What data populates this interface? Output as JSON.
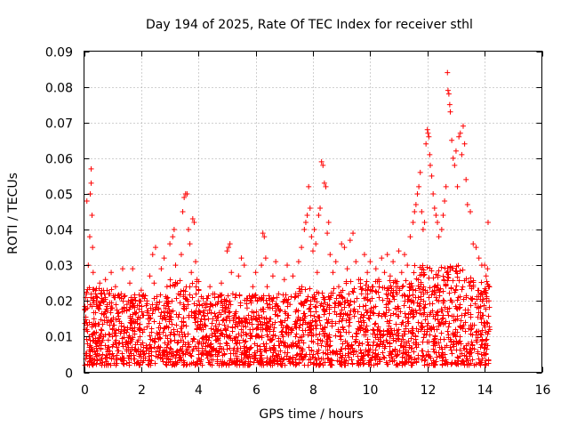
{
  "chart_data": {
    "type": "scatter",
    "title": "Day 194 of 2025, Rate Of TEC Index for receiver sthl",
    "xlabel": "GPS time / hours",
    "ylabel": "ROTI / TECUs",
    "xlim": [
      0,
      16
    ],
    "ylim": [
      0,
      0.09
    ],
    "x_ticks": [
      0,
      2,
      4,
      6,
      8,
      10,
      12,
      14,
      16
    ],
    "x_tick_labels": [
      "0",
      "2",
      "4",
      "6",
      "8",
      "10",
      "12",
      "14",
      "16"
    ],
    "y_ticks": [
      0,
      0.01,
      0.02,
      0.03,
      0.04,
      0.05,
      0.06,
      0.07,
      0.08,
      0.09
    ],
    "y_tick_labels": [
      "0",
      "0.01",
      "0.02",
      "0.03",
      "0.04",
      "0.05",
      "0.06",
      "0.07",
      "0.08",
      "0.09"
    ],
    "grid": true,
    "marker": "+",
    "color": "#ff0000",
    "series": [
      {
        "name": "ROTI",
        "points": [
          [
            0.05,
            0.012
          ],
          [
            0.08,
            0.022
          ],
          [
            0.1,
            0.048
          ],
          [
            0.12,
            0.018
          ],
          [
            0.15,
            0.03
          ],
          [
            0.18,
            0.01
          ],
          [
            0.2,
            0.038
          ],
          [
            0.22,
            0.05
          ],
          [
            0.25,
            0.057
          ],
          [
            0.25,
            0.053
          ],
          [
            0.28,
            0.044
          ],
          [
            0.3,
            0.035
          ],
          [
            0.32,
            0.028
          ],
          [
            0.35,
            0.015
          ],
          [
            0.4,
            0.022
          ],
          [
            0.45,
            0.008
          ],
          [
            0.5,
            0.018
          ],
          [
            0.55,
            0.025
          ],
          [
            0.6,
            0.012
          ],
          [
            0.65,
            0.005
          ],
          [
            0.7,
            0.02
          ],
          [
            0.75,
            0.026
          ],
          [
            0.8,
            0.014
          ],
          [
            0.85,
            0.009
          ],
          [
            0.9,
            0.022
          ],
          [
            0.95,
            0.028
          ],
          [
            1.0,
            0.018
          ],
          [
            1.05,
            0.011
          ],
          [
            1.1,
            0.024
          ],
          [
            1.15,
            0.007
          ],
          [
            1.2,
            0.015
          ],
          [
            1.3,
            0.022
          ],
          [
            1.35,
            0.029
          ],
          [
            1.4,
            0.012
          ],
          [
            1.5,
            0.019
          ],
          [
            1.55,
            0.006
          ],
          [
            1.6,
            0.025
          ],
          [
            1.7,
            0.029
          ],
          [
            1.75,
            0.014
          ],
          [
            1.8,
            0.02
          ],
          [
            1.9,
            0.009
          ],
          [
            2.0,
            0.023
          ],
          [
            2.05,
            0.016
          ],
          [
            2.1,
            0.012
          ],
          [
            2.2,
            0.02
          ],
          [
            2.3,
            0.027
          ],
          [
            2.4,
            0.033
          ],
          [
            2.45,
            0.025
          ],
          [
            2.5,
            0.035
          ],
          [
            2.6,
            0.018
          ],
          [
            2.7,
            0.029
          ],
          [
            2.8,
            0.032
          ],
          [
            2.9,
            0.024
          ],
          [
            3.0,
            0.036
          ],
          [
            3.1,
            0.038
          ],
          [
            3.15,
            0.04
          ],
          [
            3.2,
            0.03
          ],
          [
            3.3,
            0.022
          ],
          [
            3.4,
            0.033
          ],
          [
            3.45,
            0.045
          ],
          [
            3.5,
            0.049
          ],
          [
            3.55,
            0.05
          ],
          [
            3.6,
            0.05
          ],
          [
            3.65,
            0.04
          ],
          [
            3.7,
            0.036
          ],
          [
            3.75,
            0.028
          ],
          [
            3.8,
            0.043
          ],
          [
            3.85,
            0.042
          ],
          [
            3.9,
            0.031
          ],
          [
            3.95,
            0.026
          ],
          [
            4.0,
            0.02
          ],
          [
            4.1,
            0.012
          ],
          [
            4.2,
            0.006
          ],
          [
            4.3,
            0.019
          ],
          [
            4.4,
            0.024
          ],
          [
            4.5,
            0.015
          ],
          [
            4.6,
            0.009
          ],
          [
            4.7,
            0.021
          ],
          [
            4.8,
            0.025
          ],
          [
            4.9,
            0.017
          ],
          [
            5.0,
            0.034
          ],
          [
            5.05,
            0.035
          ],
          [
            5.1,
            0.036
          ],
          [
            5.15,
            0.028
          ],
          [
            5.2,
            0.022
          ],
          [
            5.3,
            0.014
          ],
          [
            5.4,
            0.027
          ],
          [
            5.5,
            0.032
          ],
          [
            5.6,
            0.03
          ],
          [
            5.7,
            0.018
          ],
          [
            5.8,
            0.012
          ],
          [
            5.9,
            0.024
          ],
          [
            6.0,
            0.028
          ],
          [
            6.1,
            0.016
          ],
          [
            6.2,
            0.03
          ],
          [
            6.25,
            0.039
          ],
          [
            6.3,
            0.038
          ],
          [
            6.35,
            0.032
          ],
          [
            6.4,
            0.024
          ],
          [
            6.5,
            0.018
          ],
          [
            6.6,
            0.027
          ],
          [
            6.7,
            0.031
          ],
          [
            6.8,
            0.022
          ],
          [
            6.9,
            0.014
          ],
          [
            7.0,
            0.026
          ],
          [
            7.1,
            0.03
          ],
          [
            7.2,
            0.019
          ],
          [
            7.3,
            0.027
          ],
          [
            7.4,
            0.022
          ],
          [
            7.5,
            0.031
          ],
          [
            7.6,
            0.035
          ],
          [
            7.7,
            0.04
          ],
          [
            7.75,
            0.042
          ],
          [
            7.8,
            0.044
          ],
          [
            7.85,
            0.052
          ],
          [
            7.9,
            0.046
          ],
          [
            7.95,
            0.038
          ],
          [
            8.0,
            0.034
          ],
          [
            8.05,
            0.04
          ],
          [
            8.1,
            0.036
          ],
          [
            8.15,
            0.028
          ],
          [
            8.2,
            0.044
          ],
          [
            8.25,
            0.046
          ],
          [
            8.3,
            0.059
          ],
          [
            8.35,
            0.058
          ],
          [
            8.4,
            0.053
          ],
          [
            8.45,
            0.052
          ],
          [
            8.5,
            0.039
          ],
          [
            8.55,
            0.042
          ],
          [
            8.6,
            0.033
          ],
          [
            8.7,
            0.028
          ],
          [
            8.8,
            0.031
          ],
          [
            8.9,
            0.024
          ],
          [
            9.0,
            0.036
          ],
          [
            9.1,
            0.035
          ],
          [
            9.2,
            0.029
          ],
          [
            9.3,
            0.037
          ],
          [
            9.4,
            0.039
          ],
          [
            9.5,
            0.031
          ],
          [
            9.6,
            0.026
          ],
          [
            9.7,
            0.022
          ],
          [
            9.8,
            0.033
          ],
          [
            9.9,
            0.028
          ],
          [
            10.0,
            0.031
          ],
          [
            10.1,
            0.024
          ],
          [
            10.2,
            0.029
          ],
          [
            10.3,
            0.026
          ],
          [
            10.4,
            0.032
          ],
          [
            10.5,
            0.028
          ],
          [
            10.6,
            0.033
          ],
          [
            10.7,
            0.027
          ],
          [
            10.8,
            0.031
          ],
          [
            10.9,
            0.025
          ],
          [
            11.0,
            0.034
          ],
          [
            11.1,
            0.028
          ],
          [
            11.2,
            0.033
          ],
          [
            11.3,
            0.03
          ],
          [
            11.4,
            0.038
          ],
          [
            11.5,
            0.042
          ],
          [
            11.55,
            0.045
          ],
          [
            11.6,
            0.047
          ],
          [
            11.65,
            0.05
          ],
          [
            11.7,
            0.052
          ],
          [
            11.75,
            0.056
          ],
          [
            11.8,
            0.045
          ],
          [
            11.85,
            0.04
          ],
          [
            11.9,
            0.042
          ],
          [
            11.95,
            0.064
          ],
          [
            12.0,
            0.068
          ],
          [
            12.02,
            0.067
          ],
          [
            12.05,
            0.066
          ],
          [
            12.08,
            0.061
          ],
          [
            12.1,
            0.058
          ],
          [
            12.15,
            0.055
          ],
          [
            12.2,
            0.05
          ],
          [
            12.25,
            0.046
          ],
          [
            12.3,
            0.044
          ],
          [
            12.35,
            0.042
          ],
          [
            12.4,
            0.038
          ],
          [
            12.5,
            0.04
          ],
          [
            12.55,
            0.044
          ],
          [
            12.6,
            0.048
          ],
          [
            12.65,
            0.052
          ],
          [
            12.7,
            0.084
          ],
          [
            12.72,
            0.079
          ],
          [
            12.75,
            0.078
          ],
          [
            12.78,
            0.075
          ],
          [
            12.8,
            0.073
          ],
          [
            12.85,
            0.065
          ],
          [
            12.9,
            0.06
          ],
          [
            12.95,
            0.058
          ],
          [
            13.0,
            0.062
          ],
          [
            13.05,
            0.052
          ],
          [
            13.1,
            0.066
          ],
          [
            13.15,
            0.067
          ],
          [
            13.2,
            0.061
          ],
          [
            13.25,
            0.069
          ],
          [
            13.3,
            0.064
          ],
          [
            13.35,
            0.054
          ],
          [
            13.4,
            0.047
          ],
          [
            13.5,
            0.045
          ],
          [
            13.6,
            0.036
          ],
          [
            13.7,
            0.035
          ],
          [
            13.8,
            0.032
          ],
          [
            13.9,
            0.03
          ],
          [
            14.0,
            0.03
          ],
          [
            14.05,
            0.027
          ],
          [
            14.1,
            0.029
          ],
          [
            14.12,
            0.042
          ],
          [
            14.15,
            0.02
          ],
          [
            14.18,
            0.012
          ]
        ]
      }
    ]
  }
}
